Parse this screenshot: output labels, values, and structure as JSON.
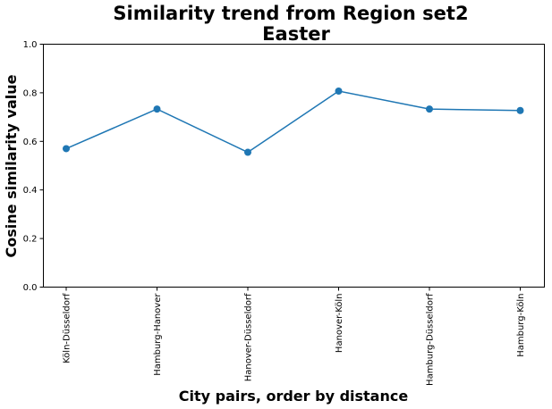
{
  "chart_data": {
    "type": "line",
    "title_lines": [
      "Similarity trend from Region set2",
      "Easter"
    ],
    "xlabel": "City pairs, order by distance",
    "ylabel": "Cosine similarity value",
    "categories": [
      "Köln-Düsseldorf",
      "Hamburg-Hanover",
      "Hanover-Düsseldorf",
      "Hanover-Köln",
      "Hamburg-Düsseldorf",
      "Hamburg-Köln"
    ],
    "values": [
      0.57,
      0.733,
      0.555,
      0.807,
      0.733,
      0.727
    ],
    "ylim": [
      0,
      1.0
    ],
    "yticks": [
      0.0,
      0.2,
      0.4,
      0.6,
      0.8,
      1.0
    ],
    "ytick_labels": [
      "0.0",
      "0.2",
      "0.4",
      "0.6",
      "0.8",
      "1.0"
    ],
    "grid": false,
    "legend": "none",
    "line_color": "#1f77b4",
    "marker": "circle"
  }
}
